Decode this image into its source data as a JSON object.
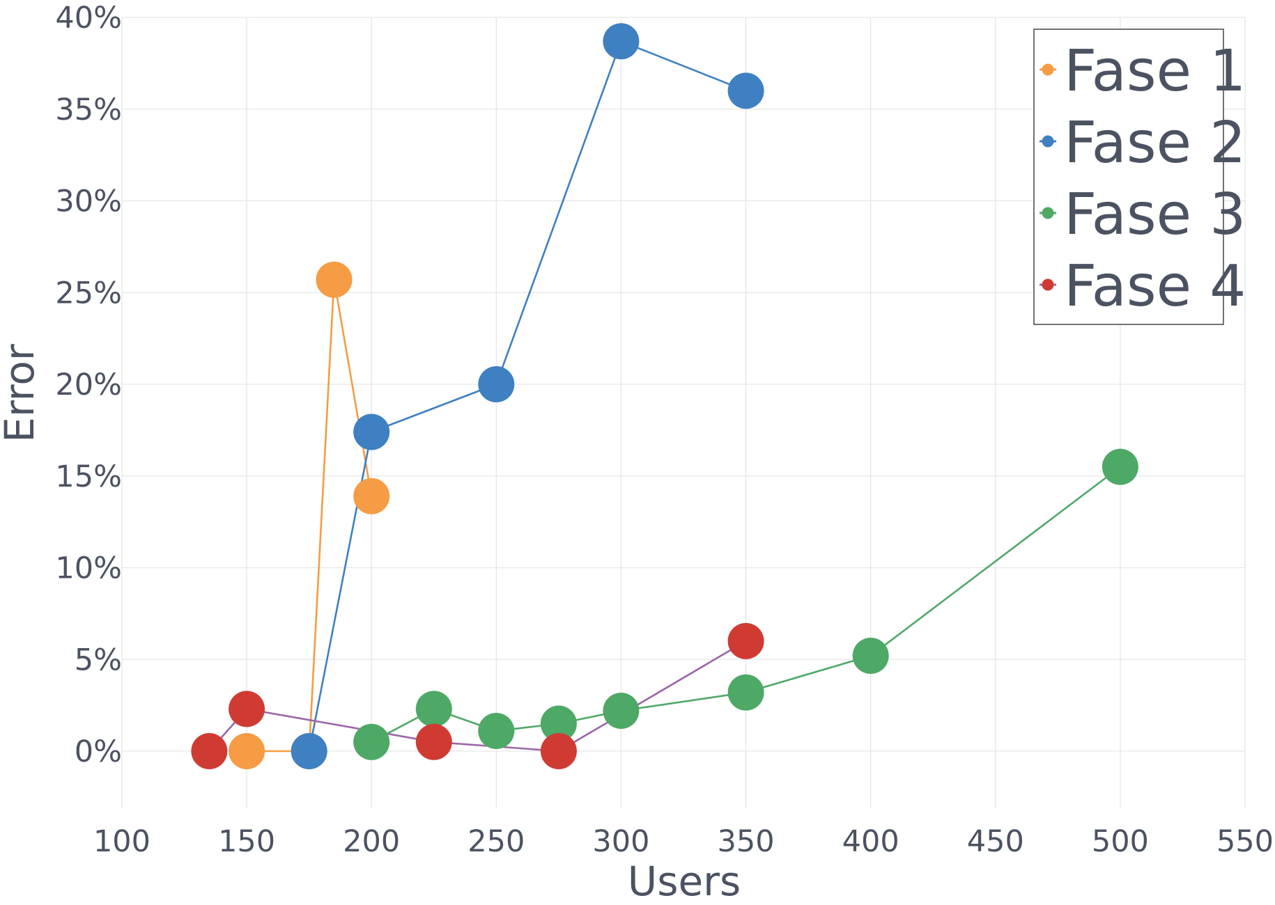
{
  "chart_data": {
    "type": "scatter",
    "mode": "lines+markers",
    "xlabel": "Users",
    "ylabel": "Error",
    "xlim": [
      100,
      550
    ],
    "ylim": [
      -0.033,
      0.4
    ],
    "x_ticks": [
      100,
      150,
      200,
      250,
      300,
      350,
      400,
      450,
      500,
      550
    ],
    "x_tick_labels": [
      "100",
      "150",
      "200",
      "250",
      "300",
      "350",
      "400",
      "450",
      "500",
      "550"
    ],
    "y_ticks": [
      0,
      0.05,
      0.1,
      0.15,
      0.2,
      0.25,
      0.3,
      0.35,
      0.4
    ],
    "y_tick_labels": [
      "0%",
      "5%",
      "10%",
      "15%",
      "20%",
      "25%",
      "30%",
      "35%",
      "40%"
    ],
    "grid": true,
    "legend_position": "top-right",
    "series": [
      {
        "name": "Fase 1",
        "color": "#f59c44",
        "line_color": "#f59c44",
        "x": [
          150,
          175,
          185,
          200
        ],
        "y": [
          0.0,
          0.0,
          0.257,
          0.139
        ]
      },
      {
        "name": "Fase 2",
        "color": "#3e80c1",
        "line_color": "#3e80c1",
        "x": [
          175,
          200,
          250,
          300,
          350
        ],
        "y": [
          0.0,
          0.174,
          0.2,
          0.387,
          0.36
        ]
      },
      {
        "name": "Fase 3",
        "color": "#4ea866",
        "line_color": "#4ea866",
        "x": [
          200,
          225,
          250,
          275,
          300,
          350,
          400,
          500
        ],
        "y": [
          0.005,
          0.023,
          0.011,
          0.015,
          0.022,
          0.032,
          0.052,
          0.155
        ]
      },
      {
        "name": "Fase 4",
        "color": "#cf3b33",
        "line_color": "#9b65a8",
        "x": [
          135,
          150,
          225,
          275,
          350
        ],
        "y": [
          0.0,
          0.023,
          0.005,
          0.0,
          0.06
        ]
      }
    ]
  }
}
